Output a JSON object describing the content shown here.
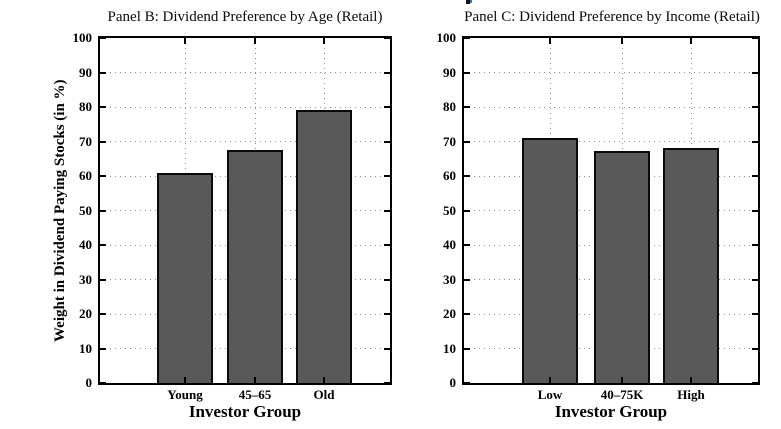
{
  "figure": {
    "background": "#ffffff",
    "text_color": "#000000"
  },
  "chart_data": [
    {
      "type": "bar",
      "panel_id": "panel-b",
      "title": "Panel B: Dividend Preference by Age (Retail)",
      "xlabel": "Investor Group",
      "ylabel": "Weight in Dividend Paying Stocks (in %)",
      "categories": [
        "Young",
        "45–65",
        "Old"
      ],
      "values": [
        61,
        67.5,
        79
      ],
      "ylim": [
        0,
        100
      ],
      "ytick_step": 10,
      "yticks": [
        0,
        10,
        20,
        30,
        40,
        50,
        60,
        70,
        80,
        90,
        100
      ],
      "grid": true,
      "grid_style": "dotted",
      "bar_color": "#595959",
      "bar_border_color": "#0a0a0a",
      "grid_color": "#8f8f8f",
      "legend": "none"
    },
    {
      "type": "bar",
      "panel_id": "panel-c",
      "title": "Panel C: Dividend Preference by Income (Retail)",
      "xlabel": "Investor Group",
      "ylabel": "",
      "categories": [
        "Low",
        "40–75K",
        "High"
      ],
      "values": [
        71,
        67.3,
        68
      ],
      "ylim": [
        0,
        100
      ],
      "ytick_step": 10,
      "yticks": [
        0,
        10,
        20,
        30,
        40,
        50,
        60,
        70,
        80,
        90,
        100
      ],
      "grid": true,
      "grid_style": "dotted",
      "bar_color": "#595959",
      "bar_border_color": "#0a0a0a",
      "grid_color": "#8f8f8f",
      "legend": "none"
    }
  ]
}
